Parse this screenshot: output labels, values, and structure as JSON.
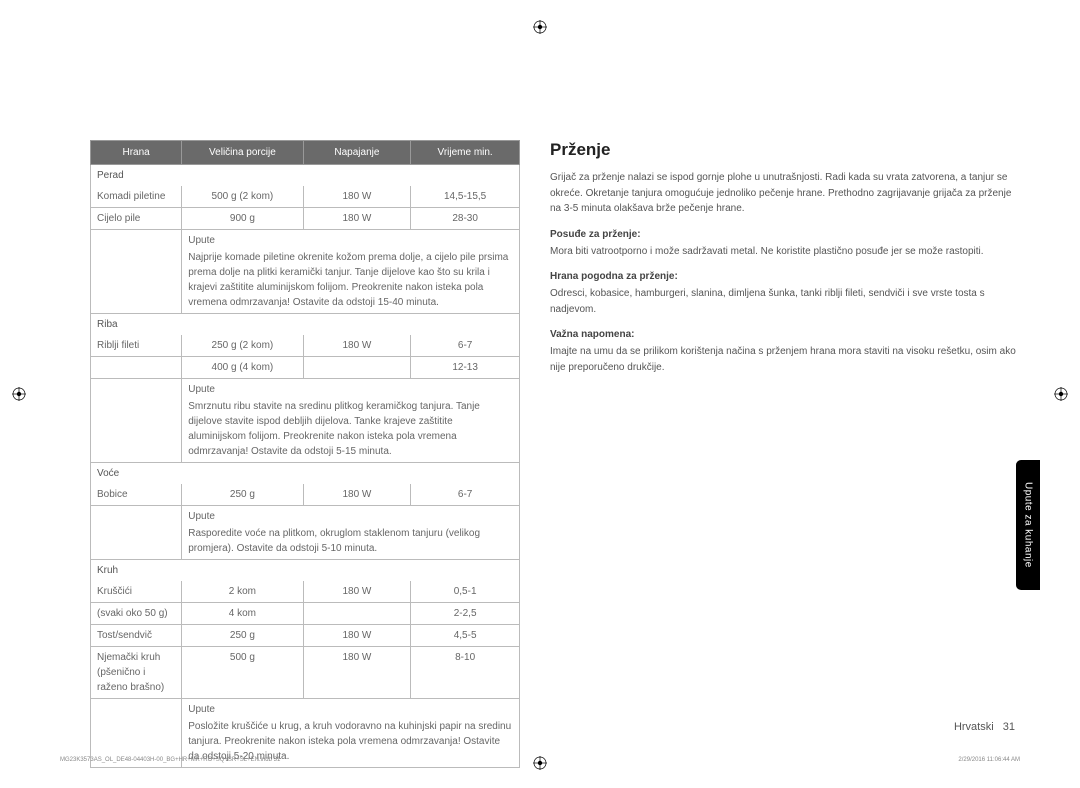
{
  "table": {
    "headers": [
      "Hrana",
      "Veličina porcije",
      "Napajanje",
      "Vrijeme min."
    ],
    "sections": [
      {
        "title": "Perad",
        "rows": [
          {
            "label": "Komadi piletine",
            "size": "500 g (2 kom)",
            "power": "180 W",
            "time": "14,5-15,5"
          },
          {
            "label": "Cijelo pile",
            "size": "900 g",
            "power": "180 W",
            "time": "28-30"
          }
        ],
        "instr_label": "Upute",
        "instr": "Najprije komade piletine okrenite kožom prema dolje, a cijelo pile prsima prema dolje na plitki keramički tanjur. Tanje dijelove kao što su krila i krajevi zaštitite aluminijskom folijom. Preokrenite nakon isteka pola vremena odmrzavanja! Ostavite da odstoji 15-40 minuta."
      },
      {
        "title": "Riba",
        "rows": [
          {
            "label": "Riblji fileti",
            "size": "250 g (2 kom)",
            "power": "180 W",
            "time": "6-7"
          },
          {
            "label": "",
            "size": "400 g (4 kom)",
            "power": "",
            "time": "12-13"
          }
        ],
        "instr_label": "Upute",
        "instr": "Smrznutu ribu stavite na sredinu plitkog keramičkog tanjura. Tanje dijelove stavite ispod debljih dijelova. Tanke krajeve zaštitite aluminijskom folijom. Preokrenite nakon isteka pola vremena odmrzavanja! Ostavite da odstoji 5-15 minuta."
      },
      {
        "title": "Voće",
        "rows": [
          {
            "label": "Bobice",
            "size": "250 g",
            "power": "180 W",
            "time": "6-7"
          }
        ],
        "instr_label": "Upute",
        "instr": "Rasporedite voće na plitkom, okruglom staklenom tanjuru (velikog promjera). Ostavite da odstoji 5-10 minuta."
      },
      {
        "title": "Kruh",
        "rows": [
          {
            "label": "Kruščići",
            "size": "2 kom",
            "power": "180 W",
            "time": "0,5-1"
          },
          {
            "label": "(svaki oko 50 g)",
            "size": "4 kom",
            "power": "",
            "time": "2-2,5"
          },
          {
            "label": "Tost/sendvič",
            "size": "250 g",
            "power": "180 W",
            "time": "4,5-5"
          },
          {
            "label": "Njemački kruh (pšenično i raženo brašno)",
            "size": "500 g",
            "power": "180 W",
            "time": "8-10"
          }
        ],
        "instr_label": "Upute",
        "instr": "Posložite kruščiće u krug, a kruh vodoravno na kuhinjski papir na sredinu tanjura. Preokrenite nakon isteka pola vremena odmrzavanja! Ostavite da odstoji 5-20 minuta."
      }
    ]
  },
  "right": {
    "heading": "Prženje",
    "intro": "Grijač za prženje nalazi se ispod gornje plohe u unutrašnjosti. Radi kada su vrata zatvorena, a tanjur se okreće. Okretanje tanjura omogućuje jednoliko pečenje hrane. Prethodno zagrijavanje grijača za prženje na 3-5 minuta olakšava brže pečenje hrane.",
    "h1": "Posuđe za prženje:",
    "p1": "Mora biti vatrootporno i može sadržavati metal. Ne koristite plastično posuđe jer se može rastopiti.",
    "h2": "Hrana pogodna za prženje:",
    "p2": "Odresci, kobasice, hamburgeri, slanina, dimljena šunka, tanki riblji fileti, sendviči i sve vrste tosta s nadjevom.",
    "h3": "Važna napomena:",
    "p3": "Imajte na umu da se prilikom korištenja načina s prženjem hrana mora staviti na visoku rešetku, osim ako nije preporučeno drukčije."
  },
  "sideTab": "Upute za kuhanje",
  "footer": {
    "lang": "Hrvatski",
    "page": "31"
  },
  "tiny": {
    "left": "MG23K3573AS_OL_DE48-04403H-00_BG+HR+MK+RO+SQ+SR+SL+EN.indb   31",
    "right": "2/29/2016   11:06:44 AM"
  }
}
